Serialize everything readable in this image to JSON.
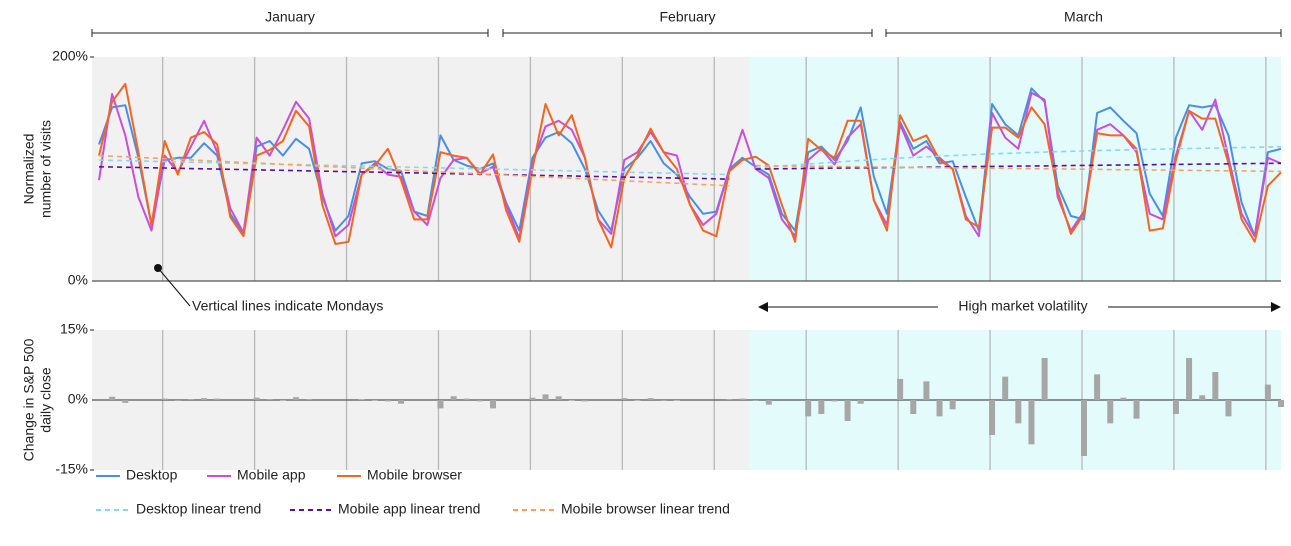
{
  "chart_data": [
    {
      "type": "line",
      "periods": [
        "January",
        "February",
        "March"
      ],
      "ylabel": [
        "Normalized",
        "number of visits"
      ],
      "ylim": [
        0,
        200
      ],
      "yticks": [
        {
          "value": 0,
          "label": "0%"
        },
        {
          "value": 200,
          "label": "200%"
        }
      ],
      "annotations": [
        "Vertical lines indicate Mondays",
        "High market volatility"
      ],
      "series": [
        {
          "name": "Desktop",
          "color": "#4a8fe0",
          "dashed": false,
          "values": [
            122,
            155,
            157,
            110,
            50,
            108,
            110,
            110,
            123,
            112,
            60,
            42,
            120,
            125,
            112,
            127,
            118,
            75,
            45,
            58,
            105,
            107,
            100,
            98,
            62,
            58,
            130,
            108,
            103,
            100,
            105,
            70,
            45,
            110,
            128,
            133,
            123,
            100,
            63,
            45,
            100,
            110,
            125,
            105,
            95,
            75,
            60,
            62,
            100,
            110,
            102,
            95,
            60,
            45,
            115,
            120,
            108,
            125,
            155,
            93,
            60,
            142,
            118,
            125,
            105,
            107,
            75,
            45,
            158,
            140,
            130,
            172,
            160,
            85,
            58,
            55,
            150,
            155,
            143,
            132,
            78,
            58,
            128,
            157,
            155,
            157,
            130,
            70,
            40,
            115,
            118
          ]
        },
        {
          "name": "Mobile app",
          "color": "#c84fd8",
          "dashed": false,
          "values": [
            90,
            167,
            130,
            75,
            45,
            112,
            97,
            120,
            143,
            115,
            65,
            43,
            128,
            112,
            135,
            160,
            145,
            78,
            40,
            50,
            95,
            105,
            95,
            93,
            62,
            50,
            92,
            108,
            110,
            96,
            102,
            68,
            38,
            105,
            138,
            143,
            135,
            110,
            55,
            42,
            108,
            115,
            133,
            115,
            112,
            68,
            50,
            60,
            100,
            135,
            100,
            92,
            55,
            40,
            108,
            118,
            104,
            128,
            140,
            72,
            50,
            140,
            112,
            120,
            110,
            100,
            58,
            40,
            150,
            128,
            118,
            168,
            162,
            75,
            45,
            62,
            135,
            140,
            130,
            115,
            60,
            55,
            112,
            152,
            135,
            162,
            110,
            60,
            40,
            110,
            105
          ]
        },
        {
          "name": "Mobile browser",
          "color": "#f26522",
          "dashed": false,
          "values": [
            112,
            160,
            176,
            115,
            50,
            125,
            95,
            128,
            133,
            122,
            57,
            40,
            112,
            117,
            125,
            152,
            138,
            68,
            33,
            35,
            95,
            103,
            118,
            90,
            55,
            55,
            115,
            112,
            110,
            95,
            113,
            63,
            35,
            100,
            158,
            130,
            148,
            110,
            55,
            30,
            92,
            112,
            136,
            115,
            100,
            68,
            45,
            40,
            98,
            108,
            111,
            103,
            68,
            35,
            127,
            117,
            110,
            143,
            143,
            72,
            45,
            148,
            125,
            130,
            108,
            100,
            55,
            48,
            137,
            137,
            128,
            155,
            140,
            80,
            42,
            60,
            132,
            130,
            130,
            118,
            45,
            47,
            108,
            152,
            145,
            145,
            105,
            55,
            35,
            85,
            97
          ]
        },
        {
          "name": "Desktop linear trend",
          "color": "#8ed4f0",
          "dashed": true,
          "values": [
            108,
            107.7,
            107.5,
            107.2,
            106.9,
            106.7,
            106.4,
            106.1,
            105.8,
            105.6,
            105.3,
            105,
            104.8,
            104.5,
            104.2,
            104,
            103.7,
            103.4,
            103.1,
            102.9,
            102.6,
            102.3,
            102.1,
            101.8,
            101.5,
            101.3,
            101,
            100.7,
            100.4,
            100.2,
            99.9,
            99.6,
            99.4,
            99.1,
            98.8,
            98.6,
            98.3,
            98,
            97.7,
            97.5,
            97.2,
            96.9,
            96.7,
            96.4,
            96.1,
            95.9,
            95.6,
            95.3,
            95,
            null,
            101,
            101.9,
            102.8,
            103.6,
            104.5,
            105.3,
            106.1,
            106.9,
            107.6,
            108.3,
            109,
            109.7,
            110.3,
            110.9,
            111.5,
            112,
            112.5,
            113,
            113.5,
            113.9,
            114.3,
            114.7,
            115.1,
            115.5,
            115.8,
            116.1,
            116.4,
            116.7,
            117,
            117.3,
            117.5,
            117.8,
            118,
            118.3,
            118.5,
            118.7,
            118.9,
            119.2,
            119.4,
            119.6,
            119.8
          ]
        },
        {
          "name": "Mobile app linear trend",
          "color": "#5a0f9c",
          "dashed": true,
          "values": [
            102,
            101.8,
            101.5,
            101.3,
            101.1,
            100.9,
            100.6,
            100.4,
            100.2,
            99.9,
            99.7,
            99.5,
            99.3,
            99,
            98.8,
            98.6,
            98.3,
            98.1,
            97.9,
            97.6,
            97.4,
            97.2,
            97,
            96.7,
            96.5,
            96.3,
            96,
            95.8,
            95.6,
            95.4,
            95.1,
            94.9,
            94.7,
            94.4,
            94.2,
            94,
            93.8,
            93.5,
            93.3,
            93.1,
            92.8,
            92.6,
            92.4,
            92.2,
            91.9,
            91.7,
            91.5,
            91.2,
            91,
            null,
            100,
            100.1,
            100.3,
            100.4,
            100.5,
            100.6,
            100.8,
            100.9,
            101,
            101.2,
            101.3,
            101.4,
            101.5,
            101.7,
            101.8,
            101.9,
            102.1,
            102.2,
            102.3,
            102.4,
            102.6,
            102.7,
            102.8,
            102.9,
            103.1,
            103.2,
            103.3,
            103.5,
            103.6,
            103.7,
            103.8,
            104,
            104.1,
            104.2,
            104.4,
            104.5,
            104.6,
            104.7,
            104.9,
            105,
            105.1
          ]
        },
        {
          "name": "Mobile browser linear trend",
          "color": "#f5a266",
          "dashed": true,
          "values": [
            112,
            111.4,
            110.9,
            110.3,
            109.8,
            109.2,
            108.6,
            108.1,
            107.5,
            106.9,
            106.4,
            105.8,
            105.3,
            104.7,
            104.1,
            103.6,
            103,
            102.4,
            101.9,
            101.3,
            100.8,
            100.2,
            99.6,
            99.1,
            98.5,
            97.9,
            97.4,
            96.8,
            96.3,
            95.7,
            95.1,
            94.6,
            94,
            93.4,
            92.9,
            92.3,
            91.8,
            91.2,
            90.6,
            90.1,
            89.5,
            88.9,
            88.4,
            87.8,
            87.3,
            86.7,
            86.1,
            85.6,
            85,
            null,
            103,
            102.9,
            102.7,
            102.6,
            102.5,
            102.4,
            102.2,
            102.1,
            102,
            101.8,
            101.7,
            101.6,
            101.5,
            101.3,
            101.2,
            101.1,
            100.9,
            100.8,
            100.7,
            100.6,
            100.4,
            100.3,
            100.2,
            100.1,
            99.9,
            99.8,
            99.7,
            99.5,
            99.4,
            99.3,
            99.2,
            99,
            98.9,
            98.8,
            98.6,
            98.5,
            98.4,
            98.3,
            98.1,
            98,
            97.9
          ]
        }
      ]
    },
    {
      "type": "bar",
      "ylabel": [
        "Change in S&P 500",
        "daily close"
      ],
      "ylim": [
        -15,
        15
      ],
      "yticks": [
        {
          "value": -15,
          "label": "-15%"
        },
        {
          "value": 0,
          "label": "0%"
        },
        {
          "value": 15,
          "label": "15%"
        }
      ],
      "color": "#a6a6a6",
      "values": [
        null,
        0.7,
        -0.6,
        null,
        null,
        0.3,
        -0.2,
        0.2,
        0.4,
        0.3,
        null,
        null,
        0.5,
        0.2,
        -0.1,
        0.6,
        0.2,
        null,
        null,
        null,
        0.1,
        -0.1,
        -0.3,
        -0.8,
        null,
        null,
        -1.8,
        0.8,
        0.3,
        -0.3,
        -1.8,
        null,
        null,
        0.5,
        1.2,
        0.8,
        -0.1,
        -0.3,
        null,
        null,
        0.4,
        -0.1,
        0.4,
        -0.2,
        -0.1,
        null,
        null,
        null,
        0.2,
        0.3,
        -0.2,
        -1.0,
        null,
        null,
        -3.5,
        -3,
        -0.3,
        -4.5,
        -0.8,
        null,
        null,
        4.5,
        -3,
        4,
        -3.5,
        -2,
        null,
        null,
        -7.5,
        5,
        -5,
        -9.5,
        9,
        null,
        null,
        -12,
        5.5,
        -5,
        0.5,
        -4,
        null,
        null,
        -3,
        9,
        1,
        6,
        -3.5,
        null,
        null,
        3.3,
        -1.5
      ]
    }
  ]
}
